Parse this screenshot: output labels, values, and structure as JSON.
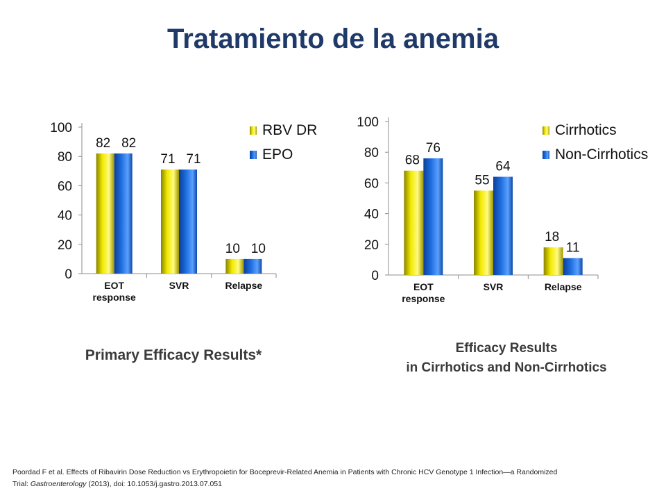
{
  "title": "Tratamiento de la anemia",
  "captions": {
    "left": "Primary Efficacy Results*",
    "right_line1": "Efficacy Results",
    "right_line2": "in Cirrhotics and Non-Cirrhotics"
  },
  "citation": {
    "line1": "Poordad F et al. Effects of Ribavirin Dose Reduction vs Erythropoietin for Boceprevir-Related Anemia in Patients with Chronic HCV Genotype 1 Infection—a Randomized",
    "line2_prefix": "Trial: ",
    "journal": "Gastroenterology",
    "line2_suffix": "  (2013), doi: 10.1053/j.gastro.2013.07.051"
  },
  "colors": {
    "series1": "#f2ea00",
    "series2": "#1f6fe0",
    "title": "#1f3a68"
  },
  "chart_data": [
    {
      "type": "bar",
      "categories": [
        [
          "EOT",
          "response"
        ],
        [
          "SVR"
        ],
        [
          "Relapse"
        ]
      ],
      "series": [
        {
          "name": "RBV DR",
          "values": [
            82,
            71,
            10
          ],
          "labels": [
            "82",
            "71",
            "10"
          ]
        },
        {
          "name": "EPO",
          "values": [
            82,
            71,
            10
          ],
          "labels": [
            "82",
            "71",
            "10"
          ]
        }
      ],
      "ylim": [
        0,
        100
      ],
      "yticks": [
        0,
        20,
        40,
        60,
        80,
        100
      ],
      "legend": "top-right",
      "grid": false
    },
    {
      "type": "bar",
      "categories": [
        [
          "EOT",
          "response"
        ],
        [
          "SVR"
        ],
        [
          "Relapse"
        ]
      ],
      "series": [
        {
          "name": "Cirrhotics",
          "values": [
            68,
            55,
            18
          ],
          "labels": [
            "68",
            "55",
            "18"
          ]
        },
        {
          "name": "Non-Cirrhotics",
          "values": [
            76,
            64,
            11
          ],
          "labels": [
            "76",
            "64",
            "11"
          ]
        }
      ],
      "ylim": [
        0,
        100
      ],
      "yticks": [
        0,
        20,
        40,
        60,
        80,
        100
      ],
      "legend": "top-right",
      "grid": false
    }
  ]
}
